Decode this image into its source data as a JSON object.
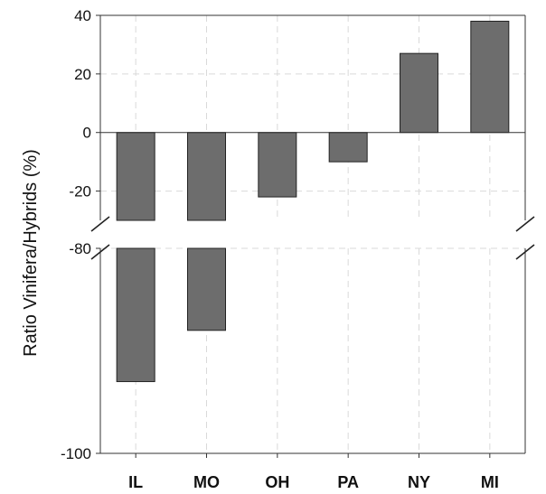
{
  "chart_data": {
    "type": "bar",
    "title": "",
    "xlabel": "",
    "ylabel": "Ratio Vinifera/Hybrids (%)",
    "categories": [
      "IL",
      "MO",
      "OH",
      "PA",
      "NY",
      "MI"
    ],
    "values": [
      -93,
      -88,
      -22,
      -10,
      27,
      38
    ],
    "bar_color": "#6d6d6d",
    "grid": true,
    "axis_break": {
      "from": -80,
      "to": -30
    },
    "upper_segment": {
      "ylim": [
        -30,
        40
      ],
      "ticks": [
        40,
        20,
        0,
        -20
      ]
    },
    "lower_segment": {
      "ylim": [
        -100,
        -80
      ],
      "ticks": [
        -80,
        -100
      ]
    }
  }
}
